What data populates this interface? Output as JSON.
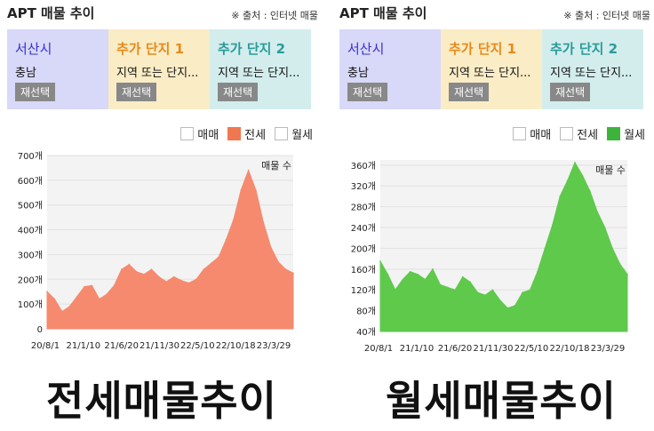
{
  "left": {
    "title": "APT 매물 추이",
    "source": "※ 출처 : 인터넷 매물",
    "selector": [
      {
        "name": "서산시",
        "sub": "충남",
        "button": "재선택"
      },
      {
        "name": "추가 단지 1",
        "sub": "지역 또는 단지...",
        "button": "재선택"
      },
      {
        "name": "추가 단지 2",
        "sub": "지역 또는 단지...",
        "button": "재선택"
      }
    ],
    "legend": [
      {
        "label": "매매",
        "checked": false,
        "color": "#ffffff"
      },
      {
        "label": "전세",
        "checked": true,
        "color": "#f07850"
      },
      {
        "label": "월세",
        "checked": false,
        "color": "#ffffff"
      }
    ],
    "caption": "전세매물추이"
  },
  "right": {
    "title": "APT 매물 추이",
    "source": "※ 출처 : 인터넷 매물",
    "selector": [
      {
        "name": "서산시",
        "sub": "충남",
        "button": "재선택"
      },
      {
        "name": "추가 단지 1",
        "sub": "지역 또는 단지...",
        "button": "재선택"
      },
      {
        "name": "추가 단지 2",
        "sub": "지역 또는 단지...",
        "button": "재선택"
      }
    ],
    "legend": [
      {
        "label": "매매",
        "checked": false,
        "color": "#ffffff"
      },
      {
        "label": "전세",
        "checked": false,
        "color": "#ffffff"
      },
      {
        "label": "월세",
        "checked": true,
        "color": "#3cb43c"
      }
    ],
    "caption": "월세매물추이"
  },
  "chart_data": [
    {
      "type": "area",
      "title": "",
      "series_name": "매물 수",
      "color": "#f58a6e",
      "ylim": [
        0,
        700
      ],
      "yticks": [
        0,
        100,
        200,
        300,
        400,
        500,
        600,
        700
      ],
      "ytick_labels": [
        "0",
        "100개",
        "200개",
        "300개",
        "400개",
        "500개",
        "600개",
        "700개"
      ],
      "xtick_labels": [
        "20/8/1",
        "21/1/10",
        "21/6/20",
        "21/11/30",
        "22/5/10",
        "22/10/18",
        "23/3/29"
      ],
      "x": [
        "20/8/1",
        "20/9",
        "20/10",
        "20/11",
        "20/12",
        "21/1/10",
        "21/2",
        "21/3",
        "21/4",
        "21/5",
        "21/6/20",
        "21/7",
        "21/8",
        "21/9",
        "21/10",
        "21/11/30",
        "22/1",
        "22/2",
        "22/3",
        "22/4",
        "22/5/10",
        "22/6",
        "22/7",
        "22/8",
        "22/9",
        "22/10/18",
        "22/11",
        "22/12",
        "23/1",
        "23/2",
        "23/3/29",
        "23/4",
        "23/5",
        "23/6"
      ],
      "values": [
        150,
        120,
        70,
        90,
        130,
        170,
        175,
        120,
        140,
        175,
        240,
        260,
        230,
        220,
        240,
        210,
        190,
        210,
        195,
        185,
        200,
        240,
        265,
        290,
        360,
        440,
        560,
        640,
        560,
        430,
        330,
        270,
        240,
        225
      ]
    },
    {
      "type": "area",
      "title": "",
      "series_name": "매물 수",
      "color": "#5ec94a",
      "ylim": [
        40,
        370
      ],
      "yticks": [
        40,
        80,
        120,
        160,
        200,
        240,
        280,
        320,
        360
      ],
      "ytick_labels": [
        "40개",
        "80개",
        "120개",
        "160개",
        "200개",
        "240개",
        "280개",
        "320개",
        "360개"
      ],
      "xtick_labels": [
        "20/8/1",
        "21/1/10",
        "21/6/20",
        "21/11/30",
        "22/5/10",
        "22/10/18",
        "23/3/29"
      ],
      "x": [
        "20/8/1",
        "20/9",
        "20/10",
        "20/11",
        "20/12",
        "21/1/10",
        "21/2",
        "21/3",
        "21/4",
        "21/5",
        "21/6/20",
        "21/7",
        "21/8",
        "21/9",
        "21/10",
        "21/11/30",
        "22/1",
        "22/2",
        "22/3",
        "22/4",
        "22/5/10",
        "22/6",
        "22/7",
        "22/8",
        "22/9",
        "22/10/18",
        "22/11",
        "22/12",
        "23/1",
        "23/2",
        "23/3/29",
        "23/4",
        "23/5",
        "23/6"
      ],
      "values": [
        175,
        150,
        120,
        140,
        155,
        150,
        140,
        160,
        130,
        125,
        120,
        145,
        135,
        115,
        110,
        120,
        100,
        85,
        90,
        115,
        120,
        155,
        200,
        245,
        300,
        330,
        365,
        340,
        310,
        270,
        240,
        200,
        170,
        150
      ]
    }
  ]
}
